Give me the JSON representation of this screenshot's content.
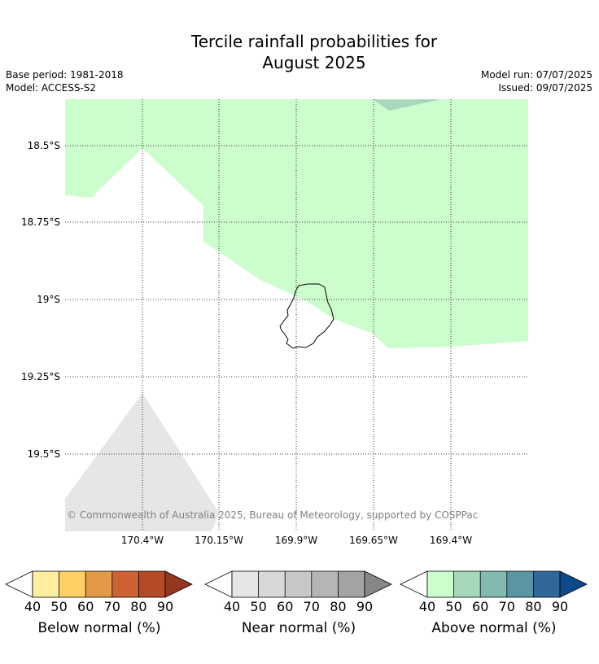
{
  "title": {
    "line1": "Tercile rainfall probabilities for",
    "line2": "August 2025"
  },
  "meta": {
    "base_period": "Base period: 1981-2018",
    "model": "Model: ACCESS-S2",
    "model_run": "Model run: 07/07/2025",
    "issued": "Issued: 09/07/2025"
  },
  "map": {
    "lat_labels": [
      "18.5°S",
      "18.75°S",
      "19°S",
      "19.25°S",
      "19.5°S"
    ],
    "lon_labels": [
      "170.4°W",
      "170.15°W",
      "169.9°W",
      "169.65°W",
      "169.4°W"
    ],
    "copyright": "© Commonwealth of Australia 2025, Bureau of Meteorology, supported by COSPPac",
    "colors": {
      "above_40_50": "#ccfdcc",
      "above_50_60": "#a6d8bc",
      "near_40_50": "#e6e6e6"
    }
  },
  "legends": [
    {
      "title": "Below normal (%)",
      "ticks": [
        "40",
        "50",
        "60",
        "70",
        "80",
        "90"
      ],
      "colors": [
        "#ffffff",
        "#ffeda0",
        "#fed065",
        "#e39a47",
        "#ce6234",
        "#b44a26",
        "#953621"
      ]
    },
    {
      "title": "Near normal (%)",
      "ticks": [
        "40",
        "50",
        "60",
        "70",
        "80",
        "90"
      ],
      "colors": [
        "#ffffff",
        "#e6e6e6",
        "#d8d8d8",
        "#c8c8c8",
        "#b5b5b5",
        "#a3a3a3",
        "#878787"
      ]
    },
    {
      "title": "Above normal (%)",
      "ticks": [
        "40",
        "50",
        "60",
        "70",
        "80",
        "90"
      ],
      "colors": [
        "#ffffff",
        "#ccfdcc",
        "#a6d8bc",
        "#82b9b1",
        "#5b95a3",
        "#306699",
        "#0c4a8b"
      ]
    }
  ]
}
